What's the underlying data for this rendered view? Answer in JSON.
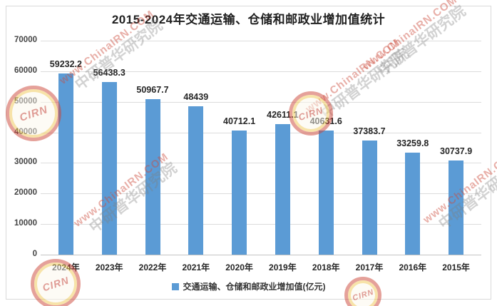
{
  "title": "2015-2024年交通运输、仓储和邮政业增加值统计",
  "legend": {
    "label": "交通运输、仓储和邮政业增加值(亿元)"
  },
  "watermark": {
    "url_text": "www.ChinaIRN.COM",
    "org_text": "中研普华研究院",
    "logo_text": "CIRN"
  },
  "chart_data": {
    "type": "bar",
    "title": "2015-2024年交通运输、仓储和邮政业增加值统计",
    "categories": [
      "2024年",
      "2023年",
      "2022年",
      "2021年",
      "2020年",
      "2019年",
      "2018年",
      "2017年",
      "2016年",
      "2015年"
    ],
    "values": [
      59232.2,
      56438.3,
      50967.7,
      48439,
      40712.1,
      42611.1,
      40631.6,
      37383.7,
      33259.8,
      30737.9
    ],
    "value_labels": [
      "59232.2",
      "56438.3",
      "50967.7",
      "48439",
      "40712.1",
      "42611.1",
      "40631.6",
      "37383.7",
      "33259.8",
      "30737.9"
    ],
    "xlabel": "",
    "ylabel": "",
    "ylim": [
      0,
      70000
    ],
    "yticks": [
      0,
      10000,
      20000,
      30000,
      40000,
      50000,
      60000,
      70000
    ],
    "grid": true,
    "legend_entries": [
      "交通运输、仓储和邮政业增加值(亿元)"
    ],
    "legend_position": "bottom",
    "bar_color": "#5B9BD5"
  }
}
